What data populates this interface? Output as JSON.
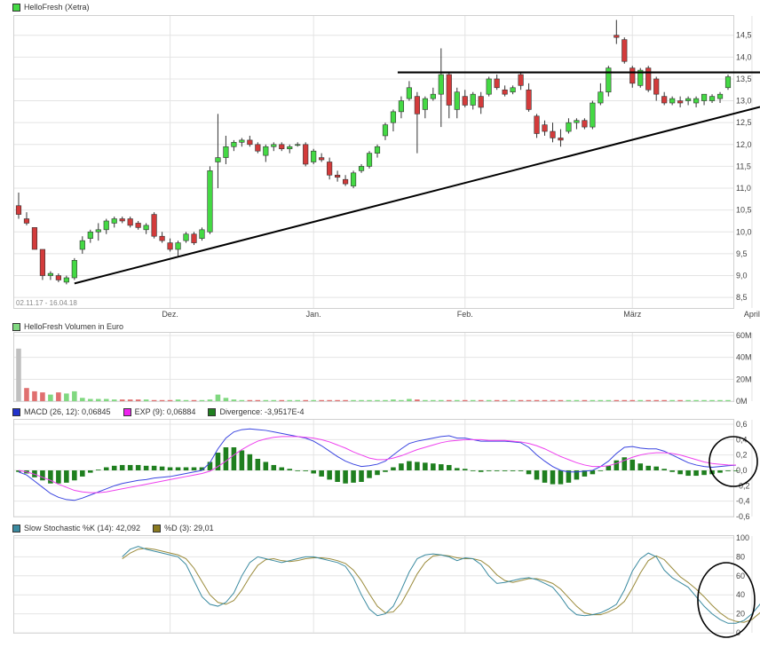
{
  "colors": {
    "up": "#44d944",
    "down": "#d33b3b",
    "macd": "#3a45e0",
    "exp": "#ee40ee",
    "div": "#1f7f1f",
    "k": "#3a8aa0",
    "d": "#9a8a3a",
    "vol_down": "#e07070",
    "vol_up": "#80d880",
    "grid": "#e4e4e4"
  },
  "panels": {
    "price": {
      "legend": "HelloFresh (Xetra)",
      "range_label": "02.11.17 - 16.04.18",
      "y_ticks": [
        "14,5",
        "14,0",
        "13,5",
        "13,0",
        "12,5",
        "12,0",
        "11,5",
        "11,0",
        "10,5",
        "10,0",
        "9,5",
        "9,0",
        "8,5"
      ],
      "x_labels": [
        "Dez.",
        "Jan.",
        "Feb.",
        "März",
        "April"
      ]
    },
    "volume": {
      "legend": "HelloFresh Volumen in Euro",
      "y_ticks": [
        "60M",
        "40M",
        "20M",
        "0M"
      ]
    },
    "macd": {
      "legend_macd": "MACD (26, 12): 0,06845",
      "legend_exp": "EXP (9): 0,06884",
      "legend_div": "Divergence: -3,9517E-4",
      "y_ticks": [
        "0,6",
        "0,4",
        "0,2",
        "0,0",
        "-0,2",
        "-0,4",
        "-0,6"
      ]
    },
    "stoch": {
      "legend_k": "Slow Stochastic %K (14): 42,092",
      "legend_d": "%D (3): 29,01",
      "y_ticks": [
        "100",
        "80",
        "60",
        "40",
        "20",
        "0"
      ]
    }
  },
  "chart_data": [
    {
      "type": "candlestick",
      "title": "HelloFresh (Xetra)",
      "x_range": [
        "02.11.17",
        "16.04.18"
      ],
      "ylim": [
        8.3,
        14.9
      ],
      "candles": [
        [
          10.6,
          10.9,
          10.3,
          10.4
        ],
        [
          10.3,
          10.45,
          10.15,
          10.2
        ],
        [
          10.1,
          10.1,
          9.6,
          9.6
        ],
        [
          9.6,
          9.6,
          8.9,
          9.0
        ],
        [
          9.0,
          9.1,
          8.9,
          9.05
        ],
        [
          9.0,
          9.05,
          8.85,
          8.9
        ],
        [
          8.85,
          9.0,
          8.8,
          8.95
        ],
        [
          8.95,
          9.4,
          8.9,
          9.35
        ],
        [
          9.6,
          9.9,
          9.5,
          9.8
        ],
        [
          9.85,
          10.05,
          9.75,
          10.0
        ],
        [
          10.0,
          10.2,
          9.8,
          10.05
        ],
        [
          10.05,
          10.3,
          9.95,
          10.25
        ],
        [
          10.2,
          10.35,
          10.1,
          10.3
        ],
        [
          10.3,
          10.35,
          10.2,
          10.25
        ],
        [
          10.3,
          10.35,
          10.1,
          10.15
        ],
        [
          10.2,
          10.25,
          10.05,
          10.1
        ],
        [
          10.05,
          10.2,
          9.95,
          10.15
        ],
        [
          10.4,
          10.45,
          9.85,
          9.9
        ],
        [
          9.9,
          10.0,
          9.75,
          9.8
        ],
        [
          9.75,
          9.85,
          9.55,
          9.6
        ],
        [
          9.6,
          9.8,
          9.45,
          9.75
        ],
        [
          9.8,
          10.0,
          9.75,
          9.95
        ],
        [
          9.95,
          10.0,
          9.7,
          9.75
        ],
        [
          9.85,
          10.1,
          9.8,
          10.05
        ],
        [
          10.0,
          11.5,
          9.95,
          11.4
        ],
        [
          11.6,
          12.7,
          11.0,
          11.7
        ],
        [
          11.7,
          12.2,
          11.55,
          11.95
        ],
        [
          11.95,
          12.1,
          11.85,
          12.05
        ],
        [
          12.05,
          12.15,
          11.95,
          12.1
        ],
        [
          12.1,
          12.2,
          11.95,
          12.0
        ],
        [
          12.0,
          12.05,
          11.8,
          11.85
        ],
        [
          11.75,
          12.0,
          11.6,
          11.95
        ],
        [
          11.95,
          12.05,
          11.85,
          12.0
        ],
        [
          12.0,
          12.05,
          11.85,
          11.9
        ],
        [
          11.9,
          12.0,
          11.8,
          11.95
        ],
        [
          12.0,
          12.05,
          11.95,
          12.0
        ],
        [
          12.0,
          12.05,
          11.5,
          11.55
        ],
        [
          11.6,
          11.9,
          11.55,
          11.85
        ],
        [
          11.7,
          11.8,
          11.6,
          11.65
        ],
        [
          11.6,
          11.7,
          11.2,
          11.3
        ],
        [
          11.3,
          11.4,
          11.15,
          11.25
        ],
        [
          11.2,
          11.3,
          11.05,
          11.1
        ],
        [
          11.05,
          11.4,
          11.0,
          11.35
        ],
        [
          11.4,
          11.55,
          11.35,
          11.5
        ],
        [
          11.5,
          11.85,
          11.45,
          11.8
        ],
        [
          11.8,
          12.0,
          11.7,
          11.95
        ],
        [
          12.2,
          12.5,
          12.1,
          12.45
        ],
        [
          12.5,
          12.8,
          12.3,
          12.75
        ],
        [
          12.75,
          13.1,
          12.6,
          13.0
        ],
        [
          13.05,
          13.45,
          13.0,
          13.3
        ],
        [
          13.1,
          13.2,
          11.8,
          12.7
        ],
        [
          12.8,
          13.1,
          12.6,
          13.05
        ],
        [
          13.05,
          13.3,
          13.0,
          13.15
        ],
        [
          13.15,
          14.2,
          12.4,
          13.6
        ],
        [
          13.6,
          13.65,
          12.6,
          12.9
        ],
        [
          12.8,
          13.3,
          12.6,
          13.2
        ],
        [
          13.1,
          13.25,
          12.85,
          12.9
        ],
        [
          12.9,
          13.2,
          12.8,
          13.15
        ],
        [
          13.1,
          13.2,
          12.7,
          12.85
        ],
        [
          13.15,
          13.55,
          13.1,
          13.5
        ],
        [
          13.5,
          13.6,
          13.25,
          13.3
        ],
        [
          13.25,
          13.35,
          13.1,
          13.15
        ],
        [
          13.2,
          13.35,
          13.15,
          13.3
        ],
        [
          13.6,
          13.65,
          13.25,
          13.35
        ],
        [
          13.25,
          13.4,
          12.75,
          12.8
        ],
        [
          12.65,
          12.7,
          12.15,
          12.25
        ],
        [
          12.45,
          12.55,
          12.2,
          12.3
        ],
        [
          12.3,
          12.5,
          12.05,
          12.15
        ],
        [
          12.15,
          12.35,
          11.95,
          12.1
        ],
        [
          12.3,
          12.6,
          12.25,
          12.5
        ],
        [
          12.5,
          12.6,
          12.35,
          12.55
        ],
        [
          12.55,
          12.6,
          12.35,
          12.4
        ],
        [
          12.4,
          13.0,
          12.35,
          12.95
        ],
        [
          12.95,
          13.4,
          12.9,
          13.2
        ],
        [
          13.2,
          13.8,
          13.1,
          13.75
        ],
        [
          14.5,
          14.85,
          14.3,
          14.45
        ],
        [
          14.4,
          14.45,
          13.85,
          13.9
        ],
        [
          13.75,
          13.8,
          13.3,
          13.4
        ],
        [
          13.35,
          13.75,
          13.3,
          13.7
        ],
        [
          13.75,
          13.8,
          13.2,
          13.25
        ],
        [
          13.5,
          13.55,
          13.0,
          13.15
        ],
        [
          13.1,
          13.2,
          12.9,
          12.95
        ],
        [
          12.95,
          13.1,
          12.9,
          13.05
        ],
        [
          13.0,
          13.1,
          12.85,
          12.95
        ],
        [
          13.0,
          13.1,
          12.9,
          13.05
        ],
        [
          12.95,
          13.1,
          12.85,
          13.05
        ],
        [
          13.0,
          13.15,
          12.9,
          13.15
        ],
        [
          13.0,
          13.15,
          12.95,
          13.1
        ],
        [
          13.05,
          13.2,
          12.95,
          13.15
        ],
        [
          13.3,
          13.6,
          13.25,
          13.55
        ]
      ],
      "annotations": [
        {
          "type": "support-trendline",
          "from": [
            7,
            8.82
          ],
          "to": [
            96,
            13.0
          ]
        },
        {
          "type": "resistance-line",
          "value": 13.65,
          "from_index": 48,
          "to_index": 96
        }
      ]
    },
    {
      "type": "bar",
      "title": "HelloFresh Volumen in Euro",
      "ylim": [
        0,
        60
      ],
      "unit": "M",
      "values": [
        48,
        12,
        9,
        8,
        6,
        8,
        7,
        9,
        3,
        2,
        2,
        2,
        1.5,
        1.5,
        1.5,
        1.5,
        1.5,
        1,
        1,
        1,
        1.5,
        1,
        1,
        1,
        1.5,
        6,
        3,
        1.5,
        1,
        1,
        1,
        1,
        1,
        1,
        1,
        1,
        1,
        1,
        1,
        1,
        1,
        1,
        1,
        1,
        1,
        1,
        1,
        1.5,
        1,
        2,
        1.5,
        1,
        1,
        1,
        1,
        1,
        1,
        1,
        1,
        1,
        1,
        1,
        1,
        1,
        1,
        1,
        1,
        1,
        1,
        1,
        1,
        1,
        1,
        1,
        1,
        1,
        1,
        1,
        1,
        1,
        1,
        1,
        1,
        1,
        1,
        1,
        1,
        1,
        1,
        1
      ]
    },
    {
      "type": "line",
      "title": "MACD",
      "ylim": [
        -0.6,
        0.6
      ],
      "series": [
        {
          "name": "MACD (26, 12)",
          "values": [
            -0.02,
            -0.06,
            -0.14,
            -0.22,
            -0.3,
            -0.35,
            -0.38,
            -0.39,
            -0.36,
            -0.32,
            -0.28,
            -0.24,
            -0.2,
            -0.17,
            -0.15,
            -0.13,
            -0.12,
            -0.1,
            -0.09,
            -0.08,
            -0.06,
            -0.04,
            -0.02,
            0.0,
            0.1,
            0.28,
            0.42,
            0.5,
            0.53,
            0.54,
            0.53,
            0.52,
            0.5,
            0.48,
            0.46,
            0.44,
            0.42,
            0.38,
            0.32,
            0.25,
            0.18,
            0.12,
            0.08,
            0.05,
            0.06,
            0.08,
            0.12,
            0.2,
            0.28,
            0.35,
            0.38,
            0.4,
            0.42,
            0.44,
            0.45,
            0.42,
            0.42,
            0.4,
            0.38,
            0.38,
            0.38,
            0.38,
            0.37,
            0.36,
            0.3,
            0.2,
            0.12,
            0.05,
            0.0,
            -0.02,
            -0.02,
            -0.01,
            0.0,
            0.05,
            0.12,
            0.22,
            0.3,
            0.31,
            0.29,
            0.28,
            0.28,
            0.25,
            0.2,
            0.15,
            0.1,
            0.07,
            0.05,
            0.04,
            0.05,
            0.06,
            0.068
          ]
        },
        {
          "name": "EXP (9)",
          "values": [
            0.0,
            -0.02,
            -0.05,
            -0.09,
            -0.13,
            -0.18,
            -0.22,
            -0.26,
            -0.28,
            -0.29,
            -0.29,
            -0.28,
            -0.26,
            -0.24,
            -0.22,
            -0.2,
            -0.18,
            -0.16,
            -0.14,
            -0.12,
            -0.1,
            -0.08,
            -0.06,
            -0.04,
            -0.01,
            0.05,
            0.12,
            0.2,
            0.27,
            0.33,
            0.38,
            0.41,
            0.43,
            0.44,
            0.44,
            0.44,
            0.43,
            0.42,
            0.4,
            0.37,
            0.33,
            0.29,
            0.24,
            0.2,
            0.16,
            0.14,
            0.14,
            0.16,
            0.19,
            0.23,
            0.27,
            0.3,
            0.33,
            0.36,
            0.38,
            0.39,
            0.4,
            0.4,
            0.4,
            0.39,
            0.39,
            0.39,
            0.38,
            0.37,
            0.35,
            0.32,
            0.28,
            0.23,
            0.18,
            0.14,
            0.1,
            0.07,
            0.05,
            0.05,
            0.06,
            0.09,
            0.13,
            0.17,
            0.2,
            0.22,
            0.23,
            0.23,
            0.22,
            0.2,
            0.17,
            0.14,
            0.11,
            0.09,
            0.08,
            0.07,
            0.069
          ]
        },
        {
          "name": "Divergence",
          "type": "bar",
          "values": [
            -0.02,
            -0.04,
            -0.09,
            -0.13,
            -0.17,
            -0.17,
            -0.16,
            -0.13,
            -0.08,
            -0.03,
            0.01,
            0.04,
            0.06,
            0.07,
            0.07,
            0.07,
            0.06,
            0.06,
            0.05,
            0.04,
            0.04,
            0.04,
            0.04,
            0.04,
            0.11,
            0.23,
            0.3,
            0.3,
            0.26,
            0.21,
            0.15,
            0.11,
            0.07,
            0.04,
            0.02,
            0.0,
            -0.01,
            -0.04,
            -0.08,
            -0.12,
            -0.15,
            -0.17,
            -0.16,
            -0.15,
            -0.1,
            -0.06,
            -0.02,
            0.04,
            0.09,
            0.12,
            0.11,
            0.1,
            0.09,
            0.08,
            0.07,
            0.03,
            0.02,
            0.0,
            -0.02,
            -0.01,
            -0.01,
            -0.01,
            -0.01,
            -0.01,
            -0.05,
            -0.12,
            -0.16,
            -0.18,
            -0.18,
            -0.16,
            -0.12,
            -0.08,
            -0.05,
            0.0,
            0.06,
            0.13,
            0.17,
            0.14,
            0.09,
            0.06,
            0.05,
            0.02,
            -0.02,
            -0.05,
            -0.07,
            -0.07,
            -0.06,
            -0.05,
            -0.03,
            -0.01,
            -0.0004
          ]
        }
      ]
    },
    {
      "type": "line",
      "title": "Slow Stochastic",
      "ylim": [
        0,
        100
      ],
      "series": [
        {
          "name": "Slow Stochastic %K (14)",
          "start_index": 13,
          "values": [
            80,
            88,
            91,
            88,
            86,
            84,
            82,
            80,
            72,
            55,
            38,
            30,
            28,
            32,
            42,
            60,
            74,
            80,
            78,
            76,
            74,
            76,
            78,
            80,
            80,
            78,
            76,
            74,
            70,
            58,
            40,
            25,
            18,
            20,
            28,
            45,
            64,
            78,
            82,
            83,
            82,
            80,
            76,
            79,
            78,
            72,
            60,
            52,
            53,
            55,
            57,
            58,
            56,
            52,
            48,
            38,
            26,
            19,
            18,
            19,
            21,
            25,
            30,
            45,
            65,
            78,
            84,
            80,
            66,
            58,
            53,
            48,
            38,
            28,
            20,
            14,
            10,
            10,
            13,
            20,
            30,
            42
          ]
        },
        {
          "name": "%D (3)",
          "start_index": 13,
          "values": [
            78,
            84,
            88,
            89,
            88,
            86,
            84,
            82,
            78,
            68,
            54,
            40,
            32,
            30,
            34,
            45,
            59,
            71,
            77,
            78,
            76,
            75,
            76,
            78,
            79,
            79,
            78,
            76,
            73,
            66,
            55,
            41,
            28,
            21,
            22,
            31,
            46,
            62,
            74,
            81,
            82,
            81,
            79,
            78,
            78,
            76,
            70,
            61,
            55,
            53,
            55,
            57,
            57,
            55,
            52,
            46,
            37,
            28,
            21,
            19,
            19,
            22,
            26,
            33,
            47,
            63,
            76,
            81,
            77,
            68,
            59,
            53,
            46,
            38,
            29,
            21,
            15,
            12,
            11,
            14,
            21,
            29
          ]
        }
      ]
    }
  ]
}
